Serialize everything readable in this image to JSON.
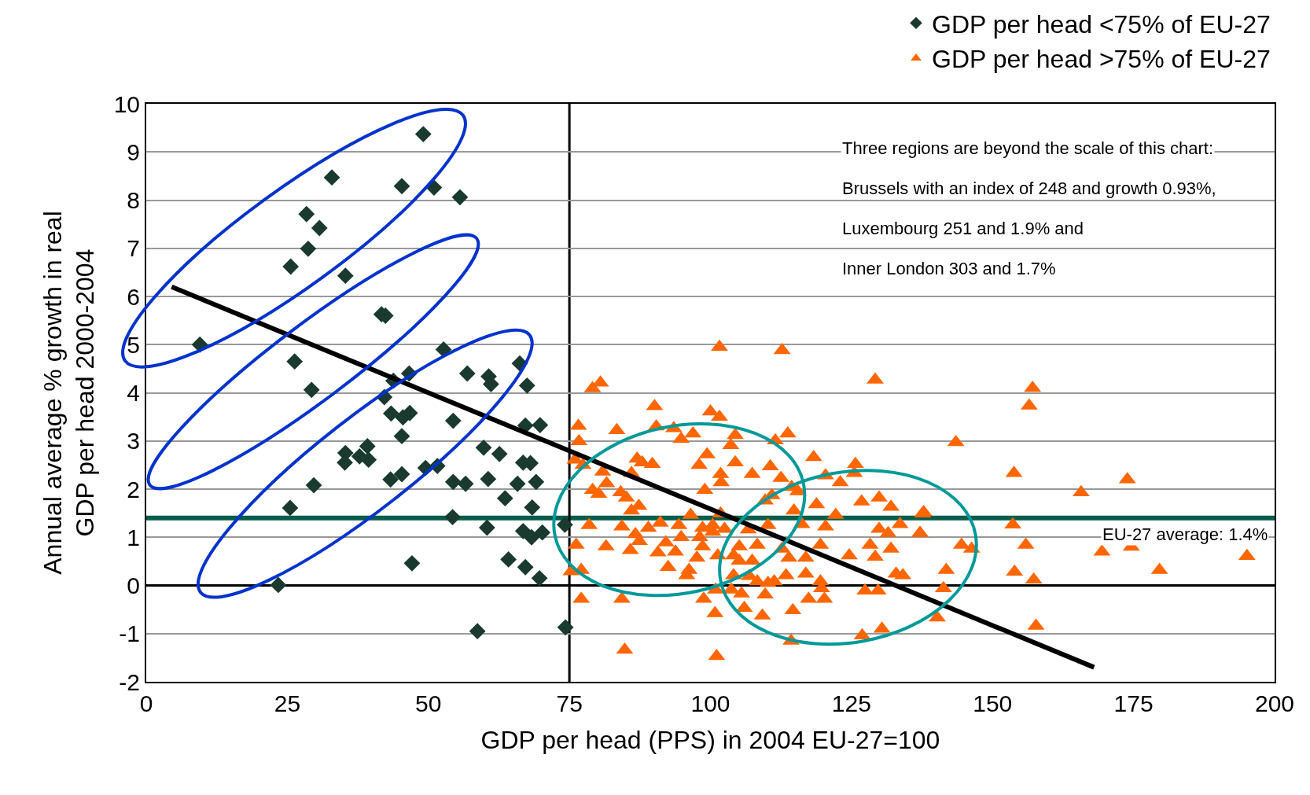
{
  "chart_data": {
    "type": "scatter",
    "xlabel": "GDP per head (PPS) in 2004 EU-27=100",
    "ylabel": "Annual average % growth in real\nGDP per head 2000-2004",
    "xlim": [
      0,
      200
    ],
    "xticks": [
      0,
      25,
      50,
      75,
      100,
      125,
      150,
      175,
      200
    ],
    "ylim": [
      -2,
      10
    ],
    "yticks": [
      -2,
      -1,
      0,
      1,
      2,
      3,
      4,
      5,
      6,
      7,
      8,
      9,
      10
    ],
    "grid": "y",
    "legend": "top right",
    "series": [
      {
        "name": "GDP per head <75% of EU-27",
        "color": "#1a3a30",
        "marker": "diamond",
        "x": [
          9.5,
          26.3,
          29.3,
          52.7,
          66.2,
          46.6,
          56.9,
          60.7,
          61.1,
          67.5,
          43.8,
          42.2,
          43.4,
          45.5,
          46.7,
          54.4,
          67.2,
          69.8,
          45.3,
          35.3,
          39.2,
          37.8,
          39.4,
          35.2,
          29.7,
          43.3,
          45.3,
          49.5,
          51.6,
          54.4,
          56.6,
          59.8,
          62.6,
          66.8,
          68.1,
          60.6,
          65.8,
          69.1,
          63.6,
          68.4,
          25.5,
          54.3,
          60.4,
          66.8,
          68.3,
          70.2,
          74.2,
          47.1,
          64.2,
          67.2,
          69.7,
          23.4,
          58.7,
          74.3,
          49.1,
          32.9,
          45.3,
          51.0,
          55.6,
          28.4,
          30.7,
          28.7,
          25.6,
          35.3,
          41.7,
          42.4
        ],
        "values": [
          5.0,
          4.65,
          4.06,
          4.9,
          4.61,
          4.4,
          4.4,
          4.34,
          4.18,
          4.15,
          4.25,
          3.91,
          3.57,
          3.49,
          3.58,
          3.42,
          3.32,
          3.33,
          3.1,
          2.75,
          2.89,
          2.68,
          2.61,
          2.55,
          2.08,
          2.2,
          2.31,
          2.44,
          2.48,
          2.15,
          2.11,
          2.86,
          2.73,
          2.55,
          2.54,
          2.21,
          2.11,
          2.15,
          1.81,
          1.62,
          1.61,
          1.42,
          1.2,
          1.13,
          1.0,
          1.1,
          1.26,
          0.46,
          0.54,
          0.38,
          0.15,
          0.01,
          -0.95,
          -0.87,
          9.37,
          8.47,
          8.29,
          8.26,
          8.06,
          7.71,
          7.42,
          6.99,
          6.62,
          6.43,
          5.63,
          5.6
        ]
      },
      {
        "name": "GDP per head >75% of EU-27",
        "color": "#ff6600",
        "marker": "triangle",
        "x": [
          101.6,
          112.7,
          129.2,
          79.1,
          80.5,
          90.1,
          100.0,
          101.6,
          76.6,
          83.4,
          90.4,
          93.5,
          96.9,
          94.8,
          76.7,
          104.4,
          103.6,
          111.5,
          113.7,
          118.3,
          125.7,
          125.5,
          76.0,
          77.4,
          80.9,
          87.0,
          87.9,
          89.7,
          86.0,
          98.0,
          99.4,
          104.4,
          101.8,
          101.9,
          107.4,
          110.6,
          112.5,
          120.4,
          123.0,
          81.6,
          79.1,
          80.2,
          84.1,
          85.1,
          99.0,
          114.4,
          115.5,
          87.3,
          86.0,
          109.7,
          110.9,
          118.8,
          126.8,
          129.9,
          132.0,
          137.8,
          122.2,
          114.8,
          96.5,
          101.8,
          78.5,
          84.3,
          89.0,
          91.1,
          94.4,
          98.6,
          100.4,
          102.5,
          86.7,
          87.4,
          92.1,
          94.8,
          98.1,
          100.4,
          106.7,
          110.2,
          116.2,
          120.4,
          129.9,
          131.5,
          133.6,
          137.1,
          76.2,
          81.5,
          85.8,
          90.7,
          93.8,
          98.6,
          105.1,
          108.3,
          112.7,
          119.5,
          124.6,
          128.3,
          129.2,
          132.0,
          92.5,
          96.2,
          97.6,
          101.3,
          104.1,
          105.1,
          107.4,
          113.9,
          116.9,
          75.3,
          77.1,
          95.8,
          104.1,
          106.9,
          108.3,
          110.2,
          111.3,
          113.4,
          116.9,
          119.5,
          132.9,
          134.1,
          103.7,
          105.5,
          109.7,
          98.8,
          100.9,
          119.7,
          120.2,
          117.4,
          127.4,
          129.7,
          77.1,
          84.3,
          106.0,
          114.6,
          100.8,
          109.2,
          126.9,
          130.4,
          114.3,
          84.8,
          101.1,
          157.1,
          156.5,
          143.5,
          153.8,
          173.9,
          165.7,
          137.6,
          153.6,
          137.2,
          144.5,
          146.3,
          155.9,
          169.4,
          174.6,
          195.1,
          141.8,
          179.6,
          153.9,
          157.3,
          141.3,
          140.2,
          157.7
        ],
        "values": [
          4.95,
          4.88,
          4.27,
          4.09,
          4.21,
          3.72,
          3.61,
          3.5,
          3.31,
          3.22,
          3.3,
          3.26,
          3.15,
          3.04,
          2.99,
          3.12,
          2.91,
          3.01,
          3.15,
          2.66,
          2.52,
          2.33,
          2.61,
          2.5,
          2.36,
          2.63,
          2.55,
          2.52,
          2.33,
          2.5,
          2.72,
          2.55,
          2.31,
          2.14,
          2.31,
          2.47,
          2.23,
          2.28,
          2.14,
          2.12,
          1.98,
          1.9,
          1.93,
          1.82,
          1.98,
          2.04,
          1.95,
          1.65,
          1.55,
          1.76,
          1.87,
          1.68,
          1.74,
          1.82,
          1.63,
          1.52,
          1.46,
          1.55,
          1.46,
          1.49,
          1.25,
          1.22,
          1.19,
          1.3,
          1.25,
          1.19,
          1.25,
          1.17,
          1.06,
          0.92,
          0.89,
          1.0,
          1.0,
          1.11,
          1.16,
          1.25,
          1.27,
          1.22,
          1.17,
          1.08,
          1.27,
          1.08,
          0.84,
          0.81,
          0.73,
          0.68,
          0.7,
          0.81,
          0.81,
          0.84,
          0.76,
          0.84,
          0.62,
          0.84,
          0.59,
          0.76,
          0.38,
          0.32,
          0.57,
          0.62,
          0.62,
          0.51,
          0.51,
          0.57,
          0.57,
          0.29,
          0.32,
          0.21,
          0.21,
          0.19,
          0.08,
          0.05,
          0.08,
          0.21,
          0.24,
          0.08,
          0.24,
          0.21,
          -0.09,
          -0.17,
          -0.19,
          -0.28,
          -0.09,
          -0.06,
          -0.28,
          -0.28,
          -0.11,
          -0.11,
          -0.28,
          -0.28,
          -0.47,
          -0.52,
          -0.58,
          -0.63,
          -1.04,
          -0.9,
          -1.15,
          -1.34,
          -1.47,
          4.1,
          3.73,
          2.97,
          2.33,
          2.2,
          1.93,
          1.49,
          1.26,
          1.08,
          0.84,
          0.76,
          0.84,
          0.7,
          0.8,
          0.61,
          0.32,
          0.32,
          0.28,
          0.12,
          -0.06,
          -0.67,
          -0.84
        ]
      },
      {
        "type": "line",
        "color": "#000000",
        "marker": "none",
        "line_style": "solid",
        "x": [
          4.5,
          168
        ],
        "values": [
          6.2,
          -1.7
        ]
      }
    ],
    "ref_lines": [
      {
        "axis": "y",
        "value": 1.4,
        "label": "EU-27 average: 1.4%",
        "color": "#065e4a"
      },
      {
        "axis": "x",
        "value": 75,
        "label": null,
        "color": "#000000"
      }
    ],
    "annotations": [
      "Three regions are beyond the scale of this chart:",
      "Brussels with an index of 248 and growth 0.93%,",
      "Luxembourg 251 and 1.9% and",
      "Inner London 303 and 1.7%"
    ]
  }
}
